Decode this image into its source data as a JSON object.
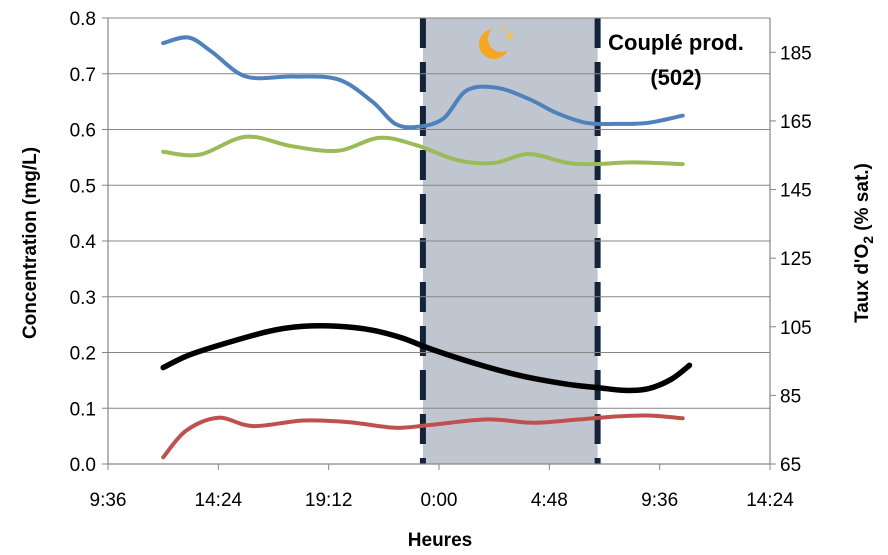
{
  "chart_data": {
    "type": "line",
    "title": "",
    "xlabel": "Heures",
    "ylabel_left": "Concentration (mg/L)",
    "ylabel_right_parts": [
      "Taux d'O",
      "2",
      " (% sat.)"
    ],
    "annotation": [
      "Couplé prod.",
      "(502)"
    ],
    "night_icon": "moon-stars-icon",
    "x_tick_labels": [
      "9:36",
      "14:24",
      "19:12",
      "0:00",
      "4:48",
      "9:36",
      "14:24"
    ],
    "x_range_hours": [
      9.6,
      38.4
    ],
    "xlim": [
      0,
      28.8
    ],
    "ylim_left": [
      0,
      0.8
    ],
    "yticks_left": [
      "0.0",
      "0.1",
      "0.2",
      "0.3",
      "0.4",
      "0.5",
      "0.6",
      "0.7",
      "0.8"
    ],
    "ylim_right": [
      65,
      195
    ],
    "yticks_right": [
      "65",
      "85",
      "105",
      "125",
      "145",
      "165",
      "185"
    ],
    "night_period": {
      "start": 13.7,
      "end": 21.3
    },
    "series": [
      {
        "color": "#4f81bd",
        "axis": "left",
        "x": [
          2.4,
          3.5,
          4.5,
          6.0,
          8.0,
          10.0,
          11.5,
          12.5,
          13.5,
          14.6,
          15.6,
          16.9,
          18.3,
          19.5,
          20.8,
          22.1,
          23.5,
          25.0
        ],
        "y": [
          0.755,
          0.765,
          0.74,
          0.695,
          0.695,
          0.69,
          0.65,
          0.61,
          0.605,
          0.62,
          0.67,
          0.675,
          0.655,
          0.63,
          0.612,
          0.61,
          0.612,
          0.625
        ]
      },
      {
        "color": "#9bbb59",
        "axis": "left",
        "x": [
          2.4,
          4.0,
          6.0,
          8.0,
          10.0,
          11.8,
          13.4,
          15.2,
          16.8,
          18.3,
          20.0,
          21.2,
          22.8,
          25.0
        ],
        "y": [
          0.56,
          0.555,
          0.587,
          0.57,
          0.562,
          0.585,
          0.572,
          0.545,
          0.54,
          0.556,
          0.54,
          0.538,
          0.541,
          0.538
        ]
      },
      {
        "color": "#000000",
        "axis": "left",
        "x": [
          2.4,
          3.5,
          5.0,
          7.0,
          8.5,
          10.0,
          11.5,
          12.8,
          14.0,
          16.0,
          18.0,
          20.0,
          21.3,
          22.5,
          23.5,
          24.5,
          25.3
        ],
        "y": [
          0.173,
          0.195,
          0.215,
          0.238,
          0.247,
          0.247,
          0.24,
          0.226,
          0.207,
          0.18,
          0.158,
          0.143,
          0.137,
          0.132,
          0.135,
          0.152,
          0.177
        ]
      },
      {
        "color": "#c0504d",
        "axis": "left",
        "x": [
          2.4,
          3.4,
          4.8,
          6.3,
          8.5,
          10.5,
          12.5,
          14.0,
          16.5,
          18.5,
          20.5,
          22.0,
          23.5,
          25.0
        ],
        "y": [
          0.012,
          0.06,
          0.083,
          0.068,
          0.078,
          0.075,
          0.065,
          0.07,
          0.08,
          0.074,
          0.08,
          0.085,
          0.087,
          0.082
        ]
      }
    ]
  }
}
